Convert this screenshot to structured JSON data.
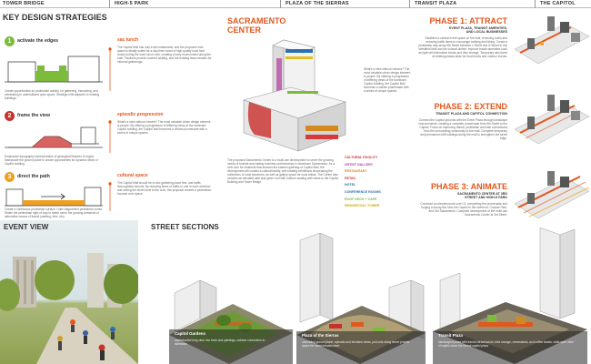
{
  "header": {
    "tower_bridge": "TOWER BRIDGE",
    "high5_park": "HIGH-5 PARK",
    "plaza_sierras": "PLAZA OF THE SIERRAS",
    "transit_plaza": "TRANSIT PLAZA",
    "the_capitol": "THE CAPITOL"
  },
  "strategies": {
    "title": "KEY DESIGN STRATEGIES",
    "items": [
      {
        "num": "1",
        "label": "activate the edges",
        "color": "#7dbb3a",
        "tag": "sac lunch",
        "left_text": "Create opportunities for pedestrian activity, for gathering, interacting, and celebrating in underutilized open space. Strategic infill adjacent to existing buildings.",
        "right_text": "The Capitol Mall has only a few restaurants, and the proposed civic space is ideally suited for a day-time crowd of high-quality local food trucks during the work lunch rush, creating a lively environment along the mall. Pavilions provide covered seating, and the existing lawn remains for informal gatherings."
      },
      {
        "num": "2",
        "label": "frame the view",
        "color": "#c9302c",
        "tag": "episodic progression",
        "left_text": "Emphasize topography representative of geological features of region. Manipulate the ground plane to create opportunities for dynamic views of Capitol building.",
        "right_text": "What's a view without viewers? The most valuable urban design element is people. By offering a progression of differing views of the dominant Capitol building, the Capitol Mall becomes a vibrant promenade with a series of unique spaces."
      },
      {
        "num": "3",
        "label": "direct the path",
        "color": "#f0a020",
        "tag": "cultural space",
        "left_text": "Create a continuous pedestrian surface. Unite fragmented pedestrian zones. Widen the pedestrian right-of-way to better serve the growing demands of alternative means of transit (walking, bike, etc).",
        "right_text": "The Capitol Mall should be a civic gathering place first, and traffic thoroughfare second. By reducing lanes of traffic to one in each direction and raising the street level to the curb, this proposal creates a pedestrian-focused civic space."
      }
    ]
  },
  "center": {
    "title_line1": "SACRAMENTO",
    "title_line2": "CENTER",
    "desc": "The proposed Sacramento Center is a multi-use development to serve the growing needs of tourists and visiting business professionals in downtown Sacramento. As a civic icon for residents that anchors the eastern gateway of Capitol Mall, the development will contain a cultural facility, with rotating exhibitions showcasing the collections of local museums, as well as gallery space for local artists. The Center also includes an elevated café and green roof with outdoor seating with views to the Capitol Building and Tower Bridge.",
    "legend": [
      {
        "label": "CULTURAL FACILITY",
        "color": "#c9302c"
      },
      {
        "label": "ARTIST GALLERY",
        "color": "#b03aa0"
      },
      {
        "label": "RESTAURANT",
        "color": "#d28a1f"
      },
      {
        "label": "RETAIL",
        "color": "#d63a3a"
      },
      {
        "label": "HOTEL",
        "color": "#2a6fb0"
      },
      {
        "label": "CONFERENCE ROOMS",
        "color": "#2a6fb0"
      },
      {
        "label": "ROOF DECK + CAFE",
        "color": "#7dbb3a"
      },
      {
        "label": "RESIDENTIAL TOWER",
        "color": "#e0c020"
      }
    ]
  },
  "phases": [
    {
      "title": "PHASE 1: ATTRACT",
      "sub1": "EVENT PLAZA, TRANSIT AMENITIES,",
      "sub2": "AND LOCAL BUSINESSES",
      "text": "Establish a central event space on the mall, removing curbs and reducing traffic lanes to encourage walking and biking. Create a pedestrian way along 9th Street between L Street and N Street to link Westfield Mall and the cultural district. Improve transit amenities such as light rail information kiosks and bike storage. Temporary structures at existing plazas allow for food trucks and outdoor events."
    },
    {
      "title": "PHASE 2: EXTEND",
      "sub1": "TRANSIT PLAZA AND CAPITOL CONNECTION",
      "sub2": "",
      "text": "Connect the Capitol grounds with the Event Plaza through landscape improvements, creating a complete promenade from 5th Street to the Capitol. Focus on improving transit, pedestrian and bike connections from the surrounding community to the mall. Complete temporary and permanent infill buildings along the mall to strengthen the street edge."
    },
    {
      "title": "PHASE 3: ANIMATE",
      "sub1": "SACRAMENTO CENTER AT 3RD",
      "sub2": "STREET AND HIGH-5 PARK",
      "text": "Construct an elevated park over I-5, completing the promenade and forging a strong link from the Capitol to the riverfront, Crocker Park, and Old Sacramento. Complete development of the multi-use Sacramento Center at 3rd Street."
    }
  ],
  "event_view": {
    "title": "EVENT VIEW"
  },
  "sections": {
    "title": "STREET SECTIONS",
    "items": [
      {
        "name": "Capitol Gardens",
        "desc": "unobstructed long view, low trees and plantings, outdoor connection to sidewalks"
      },
      {
        "name": "Plaza of the Sierras",
        "desc": "undulating ground plane, episodic and elevated views, pull-outs along street provide space for event infrastructure"
      },
      {
        "name": "Transit Plaza",
        "desc": "hardscaped plaza with transit infrastructure, bike storage, newsstands, and coffee kiosks, wide-open view of capitol down the formal capitol plaza"
      }
    ]
  },
  "colors": {
    "accent": "#e2571c",
    "green": "#7dbb3a",
    "red": "#c9302c",
    "gold": "#f0a020"
  }
}
